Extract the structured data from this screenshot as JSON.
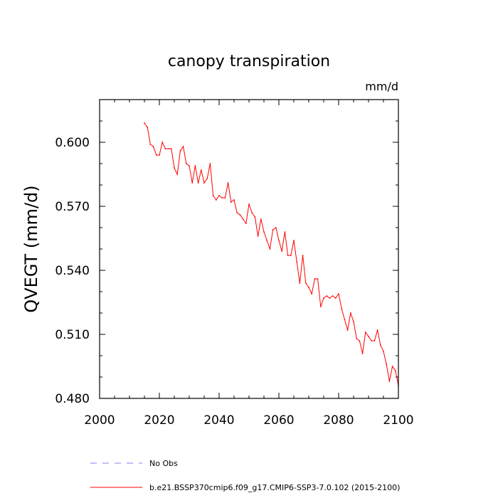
{
  "chart_data": {
    "type": "line",
    "title": "canopy transpiration",
    "units": "mm/d",
    "xlabel": "",
    "ylabel": "QVEGT  (mm/d)",
    "xlim": [
      2000,
      2100
    ],
    "ylim": [
      0.48,
      0.62
    ],
    "x_ticks": [
      2000,
      2020,
      2040,
      2060,
      2080,
      2100
    ],
    "y_ticks": [
      0.48,
      0.51,
      0.54,
      0.57,
      0.6
    ],
    "x_tick_labels": [
      "2000",
      "2020",
      "2040",
      "2060",
      "2080",
      "2100"
    ],
    "y_tick_labels": [
      "0.480",
      "0.510",
      "0.540",
      "0.570",
      "0.600"
    ],
    "grid": false,
    "legend_position": "bottom",
    "series": [
      {
        "name": "No Obs",
        "color": "#8080ff",
        "dashed": true,
        "x": [],
        "values": []
      },
      {
        "name": "b.e21.BSSP370cmip6.f09_g17.CMIP6-SSP3-7.0.102 (2015-2100)",
        "color": "#ff0000",
        "dashed": false,
        "x": [
          2015,
          2016,
          2017,
          2018,
          2019,
          2020,
          2021,
          2022,
          2023,
          2024,
          2025,
          2026,
          2027,
          2028,
          2029,
          2030,
          2031,
          2032,
          2033,
          2034,
          2035,
          2036,
          2037,
          2038,
          2039,
          2040,
          2041,
          2042,
          2043,
          2044,
          2045,
          2046,
          2047,
          2048,
          2049,
          2050,
          2051,
          2052,
          2053,
          2054,
          2055,
          2056,
          2057,
          2058,
          2059,
          2060,
          2061,
          2062,
          2063,
          2064,
          2065,
          2066,
          2067,
          2068,
          2069,
          2070,
          2071,
          2072,
          2073,
          2074,
          2075,
          2076,
          2077,
          2078,
          2079,
          2080,
          2081,
          2082,
          2083,
          2084,
          2085,
          2086,
          2087,
          2088,
          2089,
          2090,
          2091,
          2092,
          2093,
          2094,
          2095,
          2096,
          2097,
          2098,
          2099,
          2100
        ],
        "values": [
          0.609,
          0.607,
          0.599,
          0.598,
          0.594,
          0.594,
          0.6,
          0.597,
          0.597,
          0.597,
          0.588,
          0.585,
          0.596,
          0.598,
          0.59,
          0.589,
          0.581,
          0.589,
          0.581,
          0.587,
          0.581,
          0.583,
          0.59,
          0.575,
          0.573,
          0.575,
          0.574,
          0.574,
          0.581,
          0.572,
          0.573,
          0.567,
          0.566,
          0.564,
          0.562,
          0.571,
          0.567,
          0.565,
          0.556,
          0.564,
          0.558,
          0.554,
          0.55,
          0.559,
          0.56,
          0.554,
          0.549,
          0.558,
          0.547,
          0.547,
          0.554,
          0.544,
          0.534,
          0.547,
          0.534,
          0.532,
          0.529,
          0.536,
          0.536,
          0.523,
          0.527,
          0.528,
          0.527,
          0.528,
          0.527,
          0.529,
          0.522,
          0.517,
          0.512,
          0.52,
          0.516,
          0.508,
          0.507,
          0.501,
          0.511,
          0.509,
          0.507,
          0.507,
          0.512,
          0.505,
          0.502,
          0.496,
          0.488,
          0.495,
          0.493,
          0.486
        ]
      }
    ]
  }
}
